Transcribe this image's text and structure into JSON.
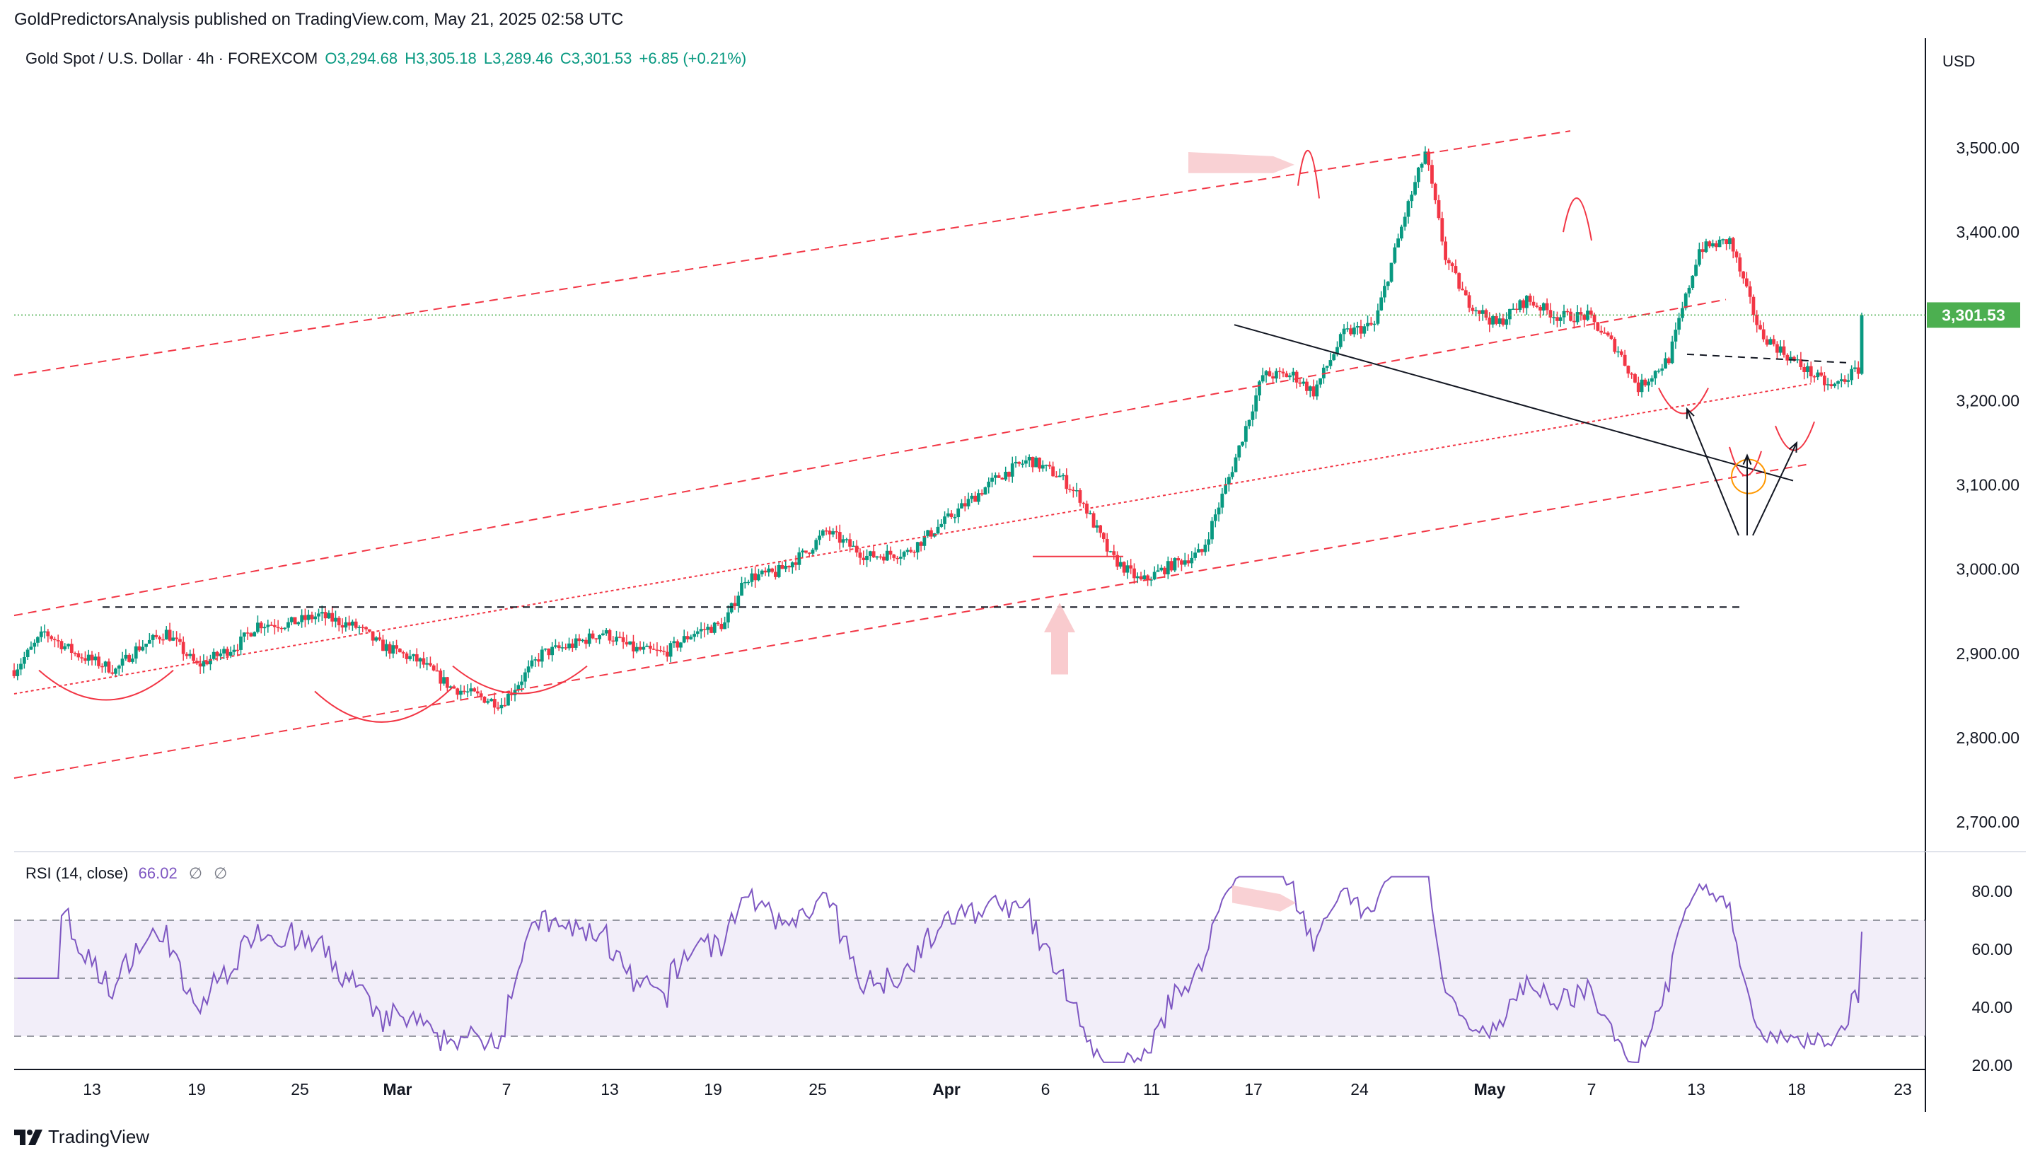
{
  "header": {
    "publisher_line": "GoldPredictorsAnalysis published on TradingView.com, May 21, 2025 02:58 UTC"
  },
  "legend": {
    "symbol": "Gold Spot / U.S. Dollar · 4h · FOREXCOM",
    "open": "O3,294.68",
    "high": "H3,305.18",
    "low": "L3,289.46",
    "close": "C3,301.53",
    "change": "+6.85 (+0.21%)"
  },
  "currency": "USD",
  "last_price_label": "3,301.53",
  "rsi_legend": {
    "name": "RSI (14, close)",
    "value": "66.02",
    "placeholder1": "∅",
    "placeholder2": "∅"
  },
  "footer": {
    "brand": "TradingView"
  },
  "colors": {
    "up": "#089981",
    "down": "#f23645",
    "channel": "#f23645",
    "rsi_line": "#7e57c2",
    "rsi_band": "#ede7f6",
    "last_price": "#4caf50"
  },
  "chart_data": [
    {
      "type": "candlestick",
      "symbol": "Gold Spot / U.S. Dollar",
      "timeframe": "4h",
      "ylim": [
        2620,
        3600
      ],
      "yticks": [
        "3,500.00",
        "3,400.00",
        "3,300.00",
        "3,200.00",
        "3,100.00",
        "3,000.00",
        "2,900.00",
        "2,800.00",
        "2,700.00"
      ],
      "ytick_values": [
        3500,
        3400,
        3300,
        3200,
        3100,
        3000,
        2900,
        2800,
        2700
      ],
      "x_labels": [
        "13",
        "19",
        "25",
        "Mar",
        "7",
        "13",
        "19",
        "25",
        "Apr",
        "6",
        "11",
        "17",
        "24",
        "May",
        "7",
        "13",
        "18",
        "23"
      ],
      "last_price": 3301.53,
      "path_days": [
        0,
        3,
        6,
        10,
        12,
        15,
        18,
        22,
        24,
        27,
        30,
        34,
        36,
        40,
        43,
        48,
        52,
        55,
        58,
        61,
        64,
        67,
        70,
        72,
        75,
        78,
        80,
        84,
        88,
        90,
        94,
        97,
        100,
        103,
        105,
        108,
        111,
        114,
        117,
        120,
        123,
        126,
        128,
        131,
        134,
        137,
        139,
        141,
        143,
        146,
        149,
        152,
        155,
        158,
        160,
        163,
        166,
        169,
        172,
        175,
        179,
        182
      ],
      "path_prices": [
        2880,
        2925,
        2900,
        2880,
        2905,
        2925,
        2885,
        2910,
        2935,
        2935,
        2945,
        2930,
        2910,
        2890,
        2860,
        2840,
        2900,
        2910,
        2925,
        2905,
        2900,
        2925,
        2935,
        2990,
        2995,
        3020,
        3045,
        3015,
        3020,
        3040,
        3080,
        3110,
        3130,
        3110,
        3085,
        3015,
        2985,
        3005,
        3020,
        3120,
        3230,
        3230,
        3210,
        3280,
        3290,
        3420,
        3495,
        3370,
        3320,
        3290,
        3320,
        3300,
        3300,
        3260,
        3215,
        3250,
        3380,
        3390,
        3280,
        3250,
        3215,
        3240
      ]
    },
    {
      "type": "line",
      "name": "RSI (14, close)",
      "ylim": [
        20,
        86
      ],
      "yticks": [
        "80.00",
        "60.00",
        "40.00",
        "20.00"
      ],
      "ytick_values": [
        80,
        60,
        40,
        20
      ],
      "band": [
        30,
        70
      ],
      "mid": 50,
      "last_value": 66.02
    }
  ]
}
